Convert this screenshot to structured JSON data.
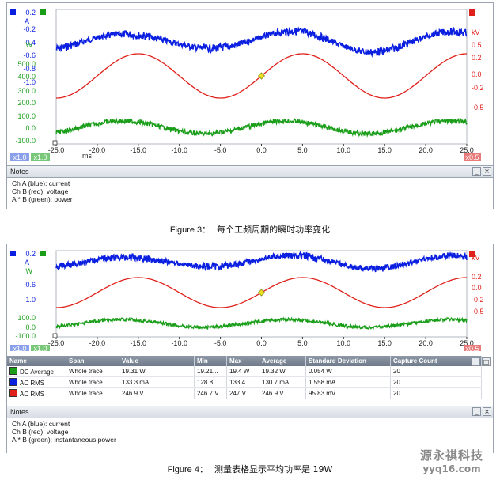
{
  "colors": {
    "channel_a": "#0b1fe0",
    "channel_b": "#e0201a",
    "power": "#1a9e1a",
    "marker": "#e8e020",
    "panel_border": "#9aa4b0"
  },
  "figure3": {
    "axis_left_a": [
      "0.2",
      "A"
    ],
    "axis_left_a_ticks": [
      "-0.2",
      "-0.4",
      "-0.6",
      "-0.8",
      "-1.0"
    ],
    "axis_left_w_label": "W",
    "axis_left_w_ticks": [
      "500.0",
      "400.0",
      "300.0",
      "200.0",
      "100.0",
      "0.0",
      "-100.0"
    ],
    "axis_right_label": "kV",
    "axis_right_ticks": [
      "0.5",
      "0.2",
      "0.0",
      "-0.2",
      "-0.5"
    ],
    "axis_right_top_badge": "x0.5",
    "x_ticks": [
      "-25.0",
      "-20.0",
      "-15.0",
      "-10.0",
      "-5.0",
      "0.0",
      "5.0",
      "10.0",
      "15.0",
      "20.0",
      "25.0"
    ],
    "x_unit": "ms",
    "scale_badges": [
      "x1.0",
      "x1.0"
    ],
    "scale_badge_right": "x0.5",
    "notes_title": "Notes",
    "notes_lines": [
      "Ch A (blue): current",
      "Ch B (red): voltage",
      "A * B (green): power"
    ],
    "caption_label": "Figure 3：",
    "caption_text": "每个工频周期的瞬时功率变化"
  },
  "figure4": {
    "axis_left_a": [
      "0.2",
      "A"
    ],
    "axis_left_a_ticks": [
      "-0.6",
      "-1.0"
    ],
    "axis_left_w_label": "W",
    "axis_left_w_ticks": [
      "100.0",
      "0.0",
      "-100.0"
    ],
    "axis_right_label": "kV",
    "axis_right_ticks": [
      "0.2",
      "0.0",
      "-0.2",
      "-0.5"
    ],
    "axis_right_top_badge": "x0.5",
    "x_ticks": [
      "-25.0",
      "-20.0",
      "-15.0",
      "-10.0",
      "-5.0",
      "0.0",
      "5.0",
      "10.0",
      "15.0",
      "20.0",
      "25.0"
    ],
    "scale_badges": [
      "x1.0",
      "x1.0"
    ],
    "scale_badge_right": "x0.5",
    "table_headers": [
      "Name",
      "Span",
      "Value",
      "Min",
      "Max",
      "Average",
      "Standard Deviation",
      "Capture Count"
    ],
    "table_rows": [
      {
        "color": "#1a9e1a",
        "cells": [
          "DC Average",
          "Whole trace",
          "19.31 W",
          "19.21...",
          "19.4 W",
          "19.32 W",
          "0.054 W",
          "20"
        ]
      },
      {
        "color": "#0b1fe0",
        "cells": [
          "AC RMS",
          "Whole trace",
          "133.3 mA",
          "128.8...",
          "133.4 ...",
          "130.7 mA",
          "1.558 mA",
          "20"
        ]
      },
      {
        "color": "#e0201a",
        "cells": [
          "AC RMS",
          "Whole trace",
          "246.9 V",
          "246.7 V",
          "247 V",
          "246.9 V",
          "95.83 mV",
          "20"
        ]
      }
    ],
    "notes_title": "Notes",
    "notes_lines": [
      "Ch A (blue): current",
      "Ch B (red): voltage",
      "A * B (green): instantaneous power"
    ],
    "caption_label": "Figure 4：",
    "caption_text": "测量表格显示平均功率是 19W"
  },
  "watermark": {
    "line1": "源永祺科技",
    "line2": "yyq16.com"
  }
}
